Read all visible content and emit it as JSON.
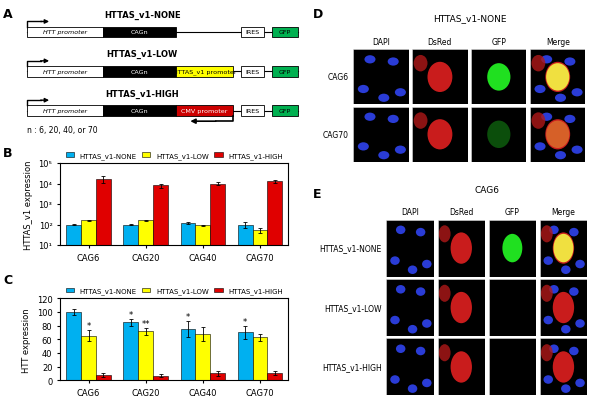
{
  "panel_labels": [
    "A",
    "B",
    "C",
    "D",
    "E"
  ],
  "diagram": {
    "constructs": [
      {
        "title": "HTTAS_v1-NONE",
        "elements": [
          {
            "label": "HTT promoter",
            "color": "#ffffff"
          },
          {
            "label": "CAGn",
            "color": "#000000"
          },
          {
            "label": "IRES",
            "color": "#ffffff"
          },
          {
            "label": "GFP",
            "color": "#00b050"
          }
        ]
      },
      {
        "title": "HTTAS_v1-LOW",
        "elements": [
          {
            "label": "HTT promoter",
            "color": "#ffffff"
          },
          {
            "label": "CAGn",
            "color": "#000000"
          },
          {
            "label": "HTTAS_v1 promoter",
            "color": "#ffff00"
          },
          {
            "label": "IRES",
            "color": "#ffffff"
          },
          {
            "label": "GFP",
            "color": "#00b050"
          }
        ]
      },
      {
        "title": "HTTAS_v1-HIGH",
        "elements": [
          {
            "label": "HTT promoter",
            "color": "#ffffff"
          },
          {
            "label": "CAGn",
            "color": "#000000"
          },
          {
            "label": "CMV promoter",
            "color": "#cc0000"
          },
          {
            "label": "IRES",
            "color": "#ffffff"
          },
          {
            "label": "GFP",
            "color": "#00b050"
          }
        ]
      }
    ],
    "note": "n : 6, 20, 40, or 70"
  },
  "chart_data": [
    {
      "type": "bar",
      "ylabel": "HTTAS_v1 expression",
      "categories": [
        "CAG6",
        "CAG20",
        "CAG40",
        "CAG70"
      ],
      "log": "y",
      "legend": "lower center",
      "ylim": [
        10,
        100000
      ],
      "yticks": [
        {
          "value": 10,
          "label": "10¹"
        },
        {
          "value": 100,
          "label": "10²"
        },
        {
          "value": 1000,
          "label": "10³"
        },
        {
          "value": 10000,
          "label": "10⁴"
        },
        {
          "value": 100000,
          "label": "10⁵"
        }
      ],
      "series": [
        {
          "name": "HTTAS_v1-NONE",
          "color": "#00b0f0",
          "values": [
            100,
            100,
            120,
            100
          ],
          "errors": [
            10,
            8,
            15,
            30
          ]
        },
        {
          "name": "HTTAS_v1-LOW",
          "color": "#ffff00",
          "values": [
            160,
            160,
            90,
            55
          ],
          "errors": [
            10,
            10,
            10,
            15
          ]
        },
        {
          "name": "HTTAS_v1-HIGH",
          "color": "#e00000",
          "values": [
            17000,
            8000,
            10000,
            13000
          ],
          "errors": [
            6000,
            2000,
            2000,
            2000
          ]
        }
      ]
    },
    {
      "type": "bar",
      "ylabel": "HTT expression",
      "categories": [
        "CAG6",
        "CAG20",
        "CAG40",
        "CAG70"
      ],
      "legend": "lower center",
      "ylim": [
        0,
        120
      ],
      "yticks": [
        0,
        20,
        40,
        60,
        80,
        100,
        120
      ],
      "series": [
        {
          "name": "HTTAS_v1-NONE",
          "color": "#00b0f0",
          "values": [
            100,
            85,
            75,
            70
          ],
          "errors": [
            5,
            5,
            12,
            10
          ],
          "annotations": [
            null,
            "*",
            "*",
            "*"
          ]
        },
        {
          "name": "HTTAS_v1-LOW",
          "color": "#ffff00",
          "values": [
            65,
            72,
            68,
            63
          ],
          "errors": [
            8,
            5,
            10,
            5
          ],
          "annotations": [
            "*",
            "**",
            null,
            null
          ]
        },
        {
          "name": "HTTAS_v1-HIGH",
          "color": "#e00000",
          "values": [
            8,
            7,
            10,
            11
          ],
          "errors": [
            3,
            2,
            3,
            3
          ],
          "annotations": [
            null,
            null,
            null,
            null
          ]
        }
      ]
    }
  ],
  "images": [
    {
      "title": "HTTAS_v1-NONE",
      "columns": [
        "DAPI",
        "DsRed",
        "GFP",
        "Merge"
      ],
      "rows": [
        "CAG6",
        "CAG70"
      ]
    },
    {
      "title": "CAG6",
      "columns": [
        "DAPI",
        "DsRed",
        "GFP",
        "Merge"
      ],
      "rows": [
        "HTTAS_v1-NONE",
        "HTTAS_v1-LOW",
        "HTTAS_v1-HIGH"
      ]
    }
  ]
}
